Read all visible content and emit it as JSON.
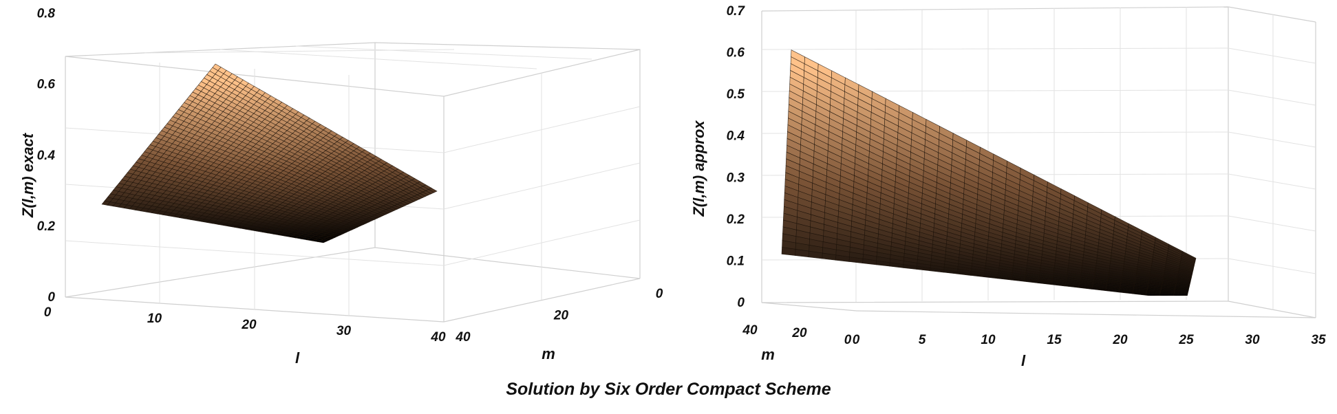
{
  "figure_caption": "Solution by Six Order Compact Scheme",
  "surface_colors": {
    "low": "#000000",
    "mid": "#7a5336",
    "high": "#ffc28a",
    "mesh": "#1a1008"
  },
  "chart_data": [
    {
      "type": "surface",
      "zlabel": "Z(l,m) exact",
      "xlabel": "l",
      "ylabel": "m",
      "x_ticks": [
        "0",
        "10",
        "20",
        "30",
        "40"
      ],
      "y_ticks": [
        "0",
        "20",
        "40"
      ],
      "z_ticks": [
        "0",
        "0.2",
        "0.4",
        "0.6",
        "0.8"
      ],
      "xlim": [
        0,
        40
      ],
      "ylim": [
        0,
        40
      ],
      "zlim": [
        0,
        0.8
      ],
      "grid": true,
      "z_corners": {
        "l0_m40": 0.15,
        "l0_m0": 0.77,
        "l40_m0": 0.22,
        "l40_m40": 0.0
      },
      "mesh_divisions": 40
    },
    {
      "type": "surface",
      "zlabel": "Z(l,m) approx",
      "xlabel": "l",
      "ylabel": "m",
      "x_ticks": [
        "0",
        "5",
        "10",
        "15",
        "20",
        "25",
        "30",
        "35"
      ],
      "y_ticks": [
        "0",
        "20",
        "40"
      ],
      "z_ticks": [
        "0",
        "0.1",
        "0.2",
        "0.3",
        "0.4",
        "0.5",
        "0.6",
        "0.7"
      ],
      "xlim": [
        0,
        35
      ],
      "ylim": [
        0,
        40
      ],
      "zlim": [
        0,
        0.7
      ],
      "grid": true,
      "z_corners": {
        "l0_m40": 0.11,
        "l0_m0": 0.6,
        "l30_m0": 0.1,
        "l30_m40": 0.0
      },
      "mesh_divisions": 30
    }
  ]
}
